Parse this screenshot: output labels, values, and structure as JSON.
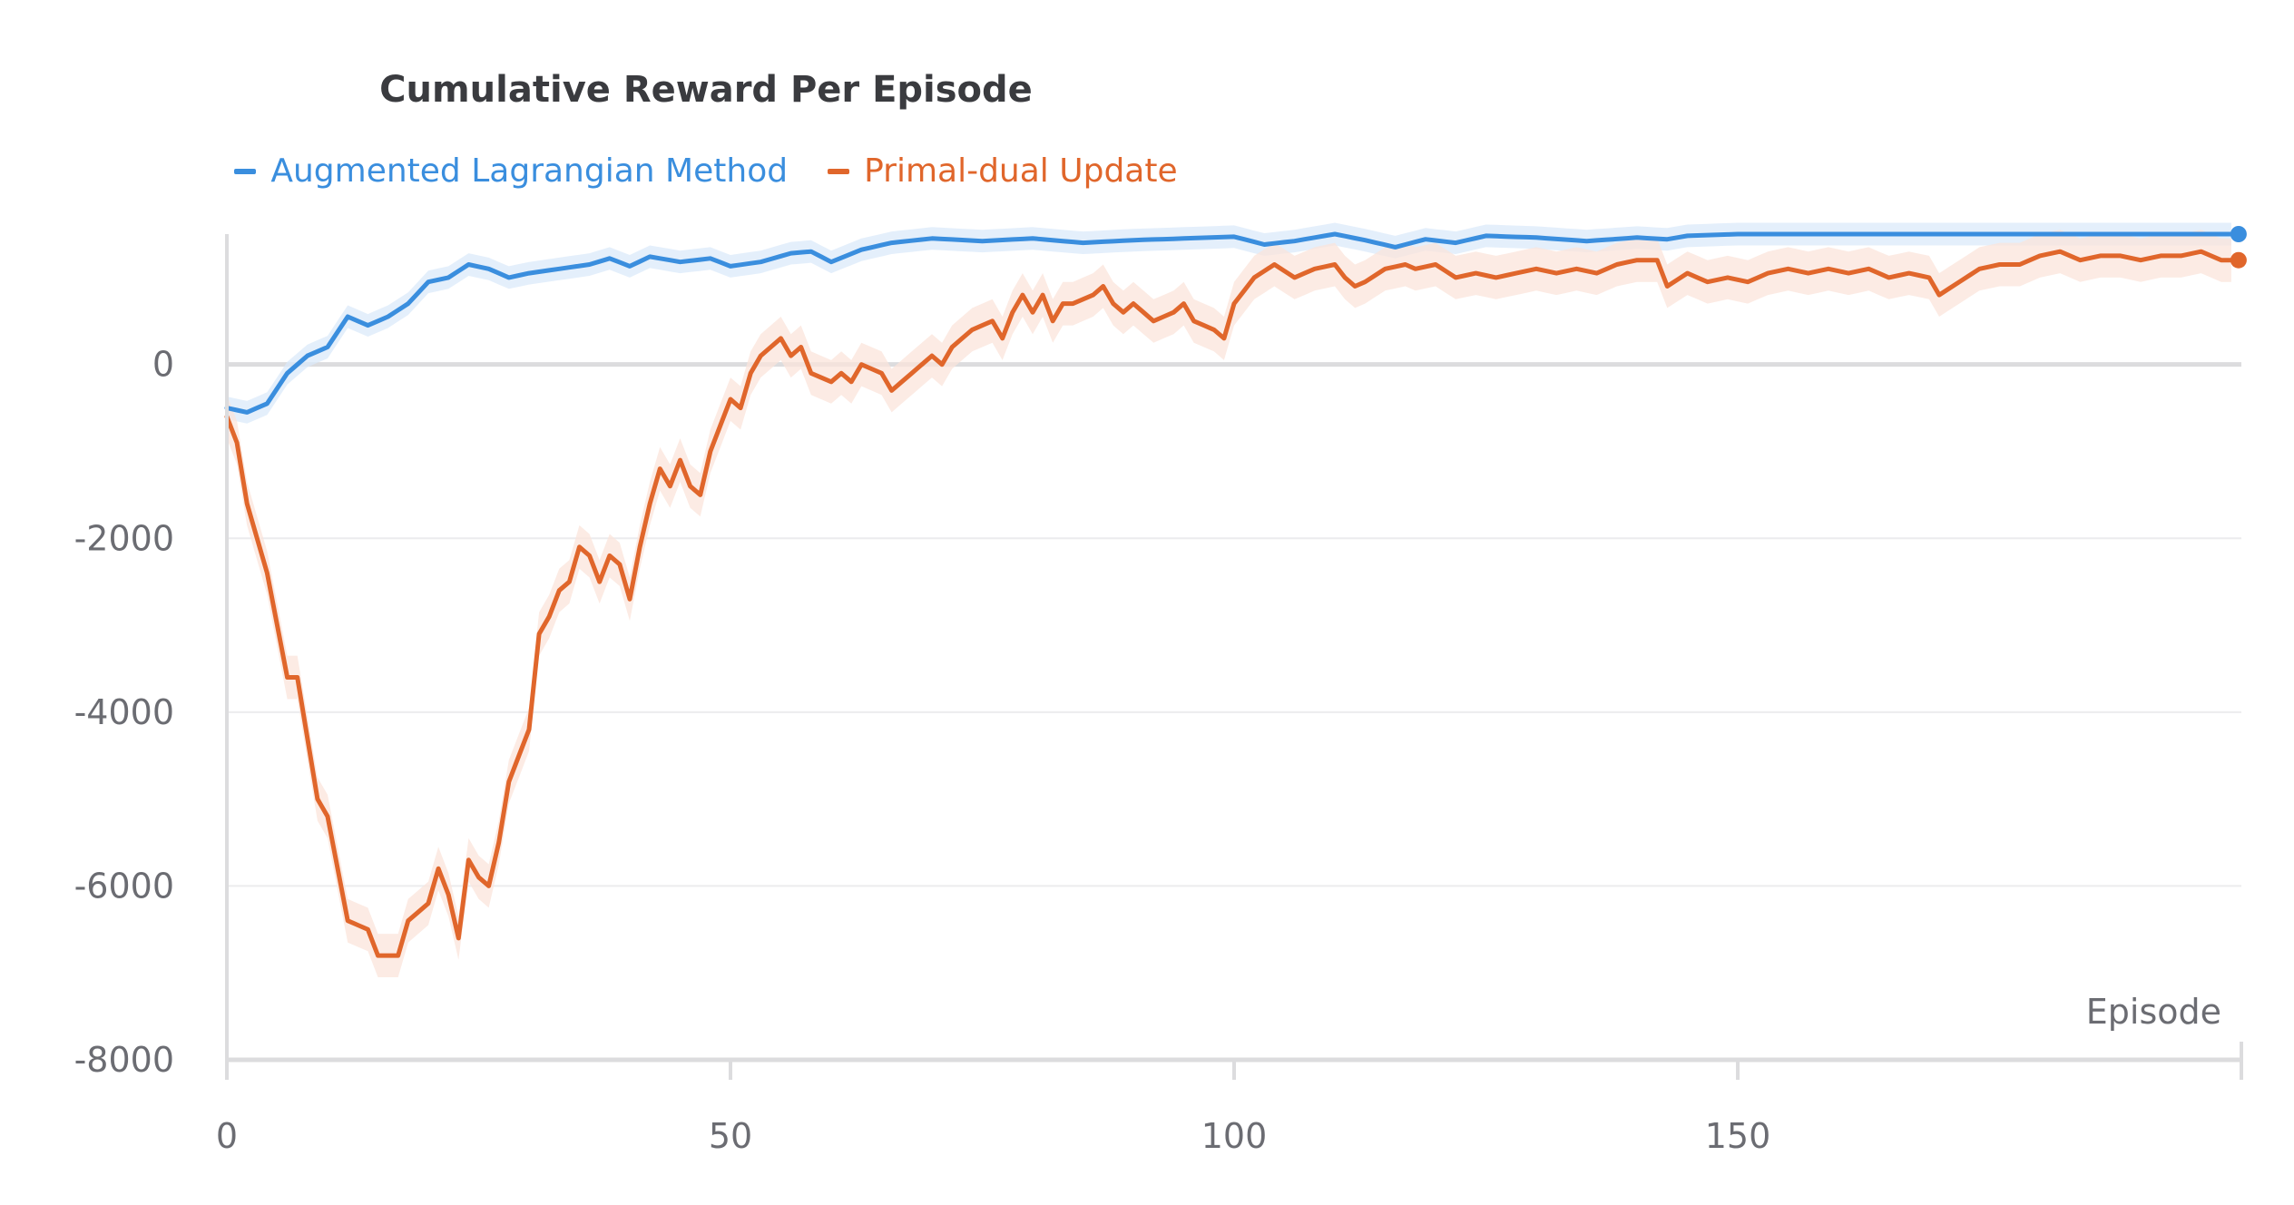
{
  "chart_data": {
    "type": "line",
    "title": "Cumulative Reward Per Episode",
    "xlabel": "Episode",
    "ylabel": "",
    "xlim": [
      0,
      200
    ],
    "ylim": [
      -8000,
      1500
    ],
    "x_ticks": [
      0,
      50,
      100,
      150
    ],
    "y_ticks": [
      0,
      -2000,
      -4000,
      -6000,
      -8000
    ],
    "grid": true,
    "legend_position": "top-center",
    "series": [
      {
        "name": "Augmented Lagrangian Method",
        "color": "#3a8ede",
        "band_color": "#dbeaf9",
        "knots": [
          [
            0,
            -500
          ],
          [
            2,
            -550
          ],
          [
            4,
            -450
          ],
          [
            6,
            -100
          ],
          [
            8,
            100
          ],
          [
            10,
            200
          ],
          [
            12,
            550
          ],
          [
            14,
            450
          ],
          [
            16,
            550
          ],
          [
            18,
            700
          ],
          [
            20,
            950
          ],
          [
            22,
            1000
          ],
          [
            24,
            1150
          ],
          [
            26,
            1100
          ],
          [
            28,
            1000
          ],
          [
            30,
            1050
          ],
          [
            33,
            1100
          ],
          [
            36,
            1150
          ],
          [
            38,
            1220
          ],
          [
            40,
            1130
          ],
          [
            42,
            1240
          ],
          [
            45,
            1180
          ],
          [
            48,
            1220
          ],
          [
            50,
            1130
          ],
          [
            53,
            1180
          ],
          [
            56,
            1280
          ],
          [
            58,
            1300
          ],
          [
            60,
            1180
          ],
          [
            63,
            1320
          ],
          [
            66,
            1400
          ],
          [
            70,
            1450
          ],
          [
            75,
            1420
          ],
          [
            80,
            1450
          ],
          [
            85,
            1400
          ],
          [
            90,
            1430
          ],
          [
            95,
            1450
          ],
          [
            100,
            1470
          ],
          [
            103,
            1380
          ],
          [
            106,
            1420
          ],
          [
            110,
            1500
          ],
          [
            113,
            1430
          ],
          [
            116,
            1350
          ],
          [
            119,
            1440
          ],
          [
            122,
            1400
          ],
          [
            125,
            1480
          ],
          [
            130,
            1460
          ],
          [
            135,
            1420
          ],
          [
            140,
            1460
          ],
          [
            143,
            1440
          ],
          [
            145,
            1480
          ],
          [
            150,
            1500
          ],
          [
            200,
            1500
          ]
        ],
        "band": 130
      },
      {
        "name": "Primal-dual Update",
        "color": "#e0662b",
        "band_color": "#fbe4db",
        "knots": [
          [
            0,
            -600
          ],
          [
            1,
            -900
          ],
          [
            2,
            -1600
          ],
          [
            4,
            -2400
          ],
          [
            6,
            -3600
          ],
          [
            7,
            -3600
          ],
          [
            9,
            -5000
          ],
          [
            10,
            -5200
          ],
          [
            12,
            -6400
          ],
          [
            14,
            -6500
          ],
          [
            15,
            -6800
          ],
          [
            17,
            -6800
          ],
          [
            18,
            -6400
          ],
          [
            20,
            -6200
          ],
          [
            21,
            -5800
          ],
          [
            22,
            -6100
          ],
          [
            23,
            -6600
          ],
          [
            24,
            -5700
          ],
          [
            25,
            -5900
          ],
          [
            26,
            -6000
          ],
          [
            27,
            -5500
          ],
          [
            28,
            -4800
          ],
          [
            30,
            -4200
          ],
          [
            31,
            -3100
          ],
          [
            32,
            -2900
          ],
          [
            33,
            -2600
          ],
          [
            34,
            -2500
          ],
          [
            35,
            -2100
          ],
          [
            36,
            -2200
          ],
          [
            37,
            -2500
          ],
          [
            38,
            -2200
          ],
          [
            39,
            -2300
          ],
          [
            40,
            -2700
          ],
          [
            41,
            -2100
          ],
          [
            42,
            -1600
          ],
          [
            43,
            -1200
          ],
          [
            44,
            -1400
          ],
          [
            45,
            -1100
          ],
          [
            46,
            -1400
          ],
          [
            47,
            -1500
          ],
          [
            48,
            -1000
          ],
          [
            49,
            -700
          ],
          [
            50,
            -400
          ],
          [
            51,
            -500
          ],
          [
            52,
            -100
          ],
          [
            53,
            100
          ],
          [
            55,
            300
          ],
          [
            56,
            100
          ],
          [
            57,
            200
          ],
          [
            58,
            -100
          ],
          [
            60,
            -200
          ],
          [
            61,
            -100
          ],
          [
            62,
            -200
          ],
          [
            63,
            0
          ],
          [
            65,
            -100
          ],
          [
            66,
            -300
          ],
          [
            67,
            -200
          ],
          [
            68,
            -100
          ],
          [
            70,
            100
          ],
          [
            71,
            0
          ],
          [
            72,
            200
          ],
          [
            74,
            400
          ],
          [
            76,
            500
          ],
          [
            77,
            300
          ],
          [
            78,
            600
          ],
          [
            79,
            800
          ],
          [
            80,
            600
          ],
          [
            81,
            800
          ],
          [
            82,
            500
          ],
          [
            83,
            700
          ],
          [
            84,
            700
          ],
          [
            86,
            800
          ],
          [
            87,
            900
          ],
          [
            88,
            700
          ],
          [
            89,
            600
          ],
          [
            90,
            700
          ],
          [
            91,
            600
          ],
          [
            92,
            500
          ],
          [
            94,
            600
          ],
          [
            95,
            700
          ],
          [
            96,
            500
          ],
          [
            98,
            400
          ],
          [
            99,
            300
          ],
          [
            100,
            700
          ],
          [
            102,
            1000
          ],
          [
            104,
            1150
          ],
          [
            106,
            1000
          ],
          [
            108,
            1100
          ],
          [
            110,
            1150
          ],
          [
            111,
            1000
          ],
          [
            112,
            900
          ],
          [
            113,
            950
          ],
          [
            115,
            1100
          ],
          [
            117,
            1150
          ],
          [
            118,
            1100
          ],
          [
            120,
            1150
          ],
          [
            122,
            1000
          ],
          [
            124,
            1050
          ],
          [
            126,
            1000
          ],
          [
            128,
            1050
          ],
          [
            130,
            1100
          ],
          [
            132,
            1050
          ],
          [
            134,
            1100
          ],
          [
            136,
            1050
          ],
          [
            138,
            1150
          ],
          [
            140,
            1200
          ],
          [
            142,
            1200
          ],
          [
            143,
            900
          ],
          [
            145,
            1050
          ],
          [
            147,
            950
          ],
          [
            149,
            1000
          ],
          [
            151,
            950
          ],
          [
            153,
            1050
          ],
          [
            155,
            1100
          ],
          [
            157,
            1050
          ],
          [
            159,
            1100
          ],
          [
            161,
            1050
          ],
          [
            163,
            1100
          ],
          [
            165,
            1000
          ],
          [
            167,
            1050
          ],
          [
            169,
            1000
          ],
          [
            170,
            800
          ],
          [
            172,
            950
          ],
          [
            174,
            1100
          ],
          [
            176,
            1150
          ],
          [
            178,
            1150
          ],
          [
            180,
            1250
          ],
          [
            182,
            1300
          ],
          [
            184,
            1200
          ],
          [
            186,
            1250
          ],
          [
            188,
            1250
          ],
          [
            190,
            1200
          ],
          [
            192,
            1250
          ],
          [
            194,
            1250
          ],
          [
            196,
            1300
          ],
          [
            198,
            1200
          ],
          [
            200,
            1200
          ]
        ],
        "band": 250
      }
    ]
  }
}
